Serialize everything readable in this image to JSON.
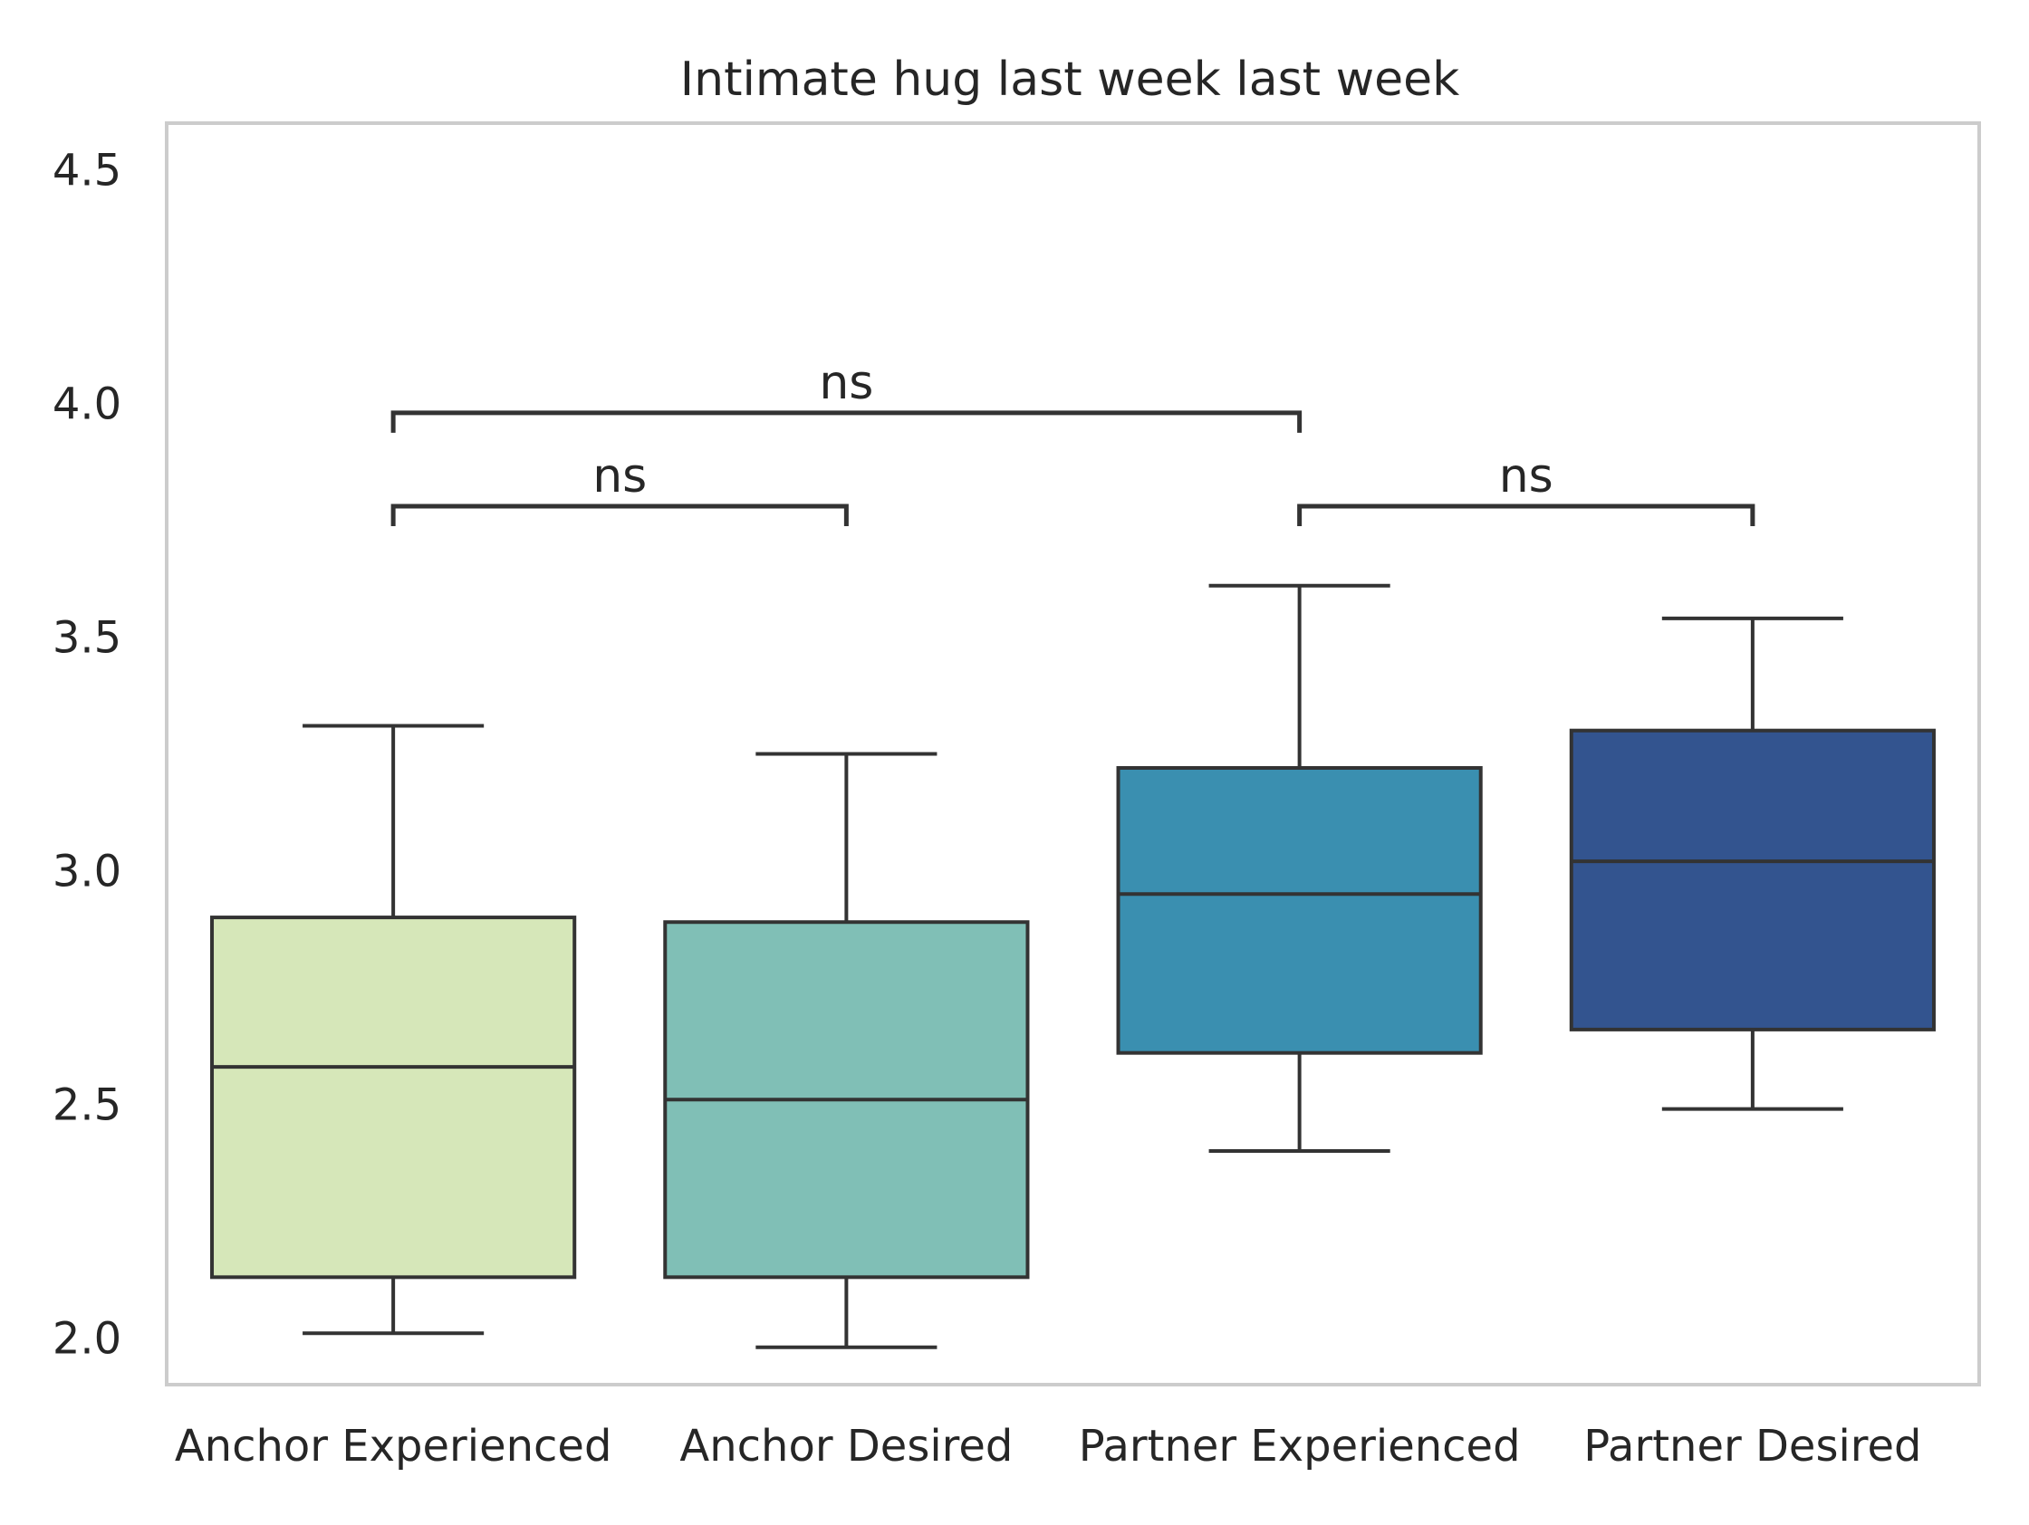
{
  "chart_data": {
    "type": "box",
    "title": "Intimate hug last week last week",
    "xlabel": "",
    "ylabel": "",
    "ylim": [
      1.9,
      4.6
    ],
    "yticks": [
      "2.0",
      "2.5",
      "3.0",
      "3.5",
      "4.0",
      "4.5"
    ],
    "grid": false,
    "categories": [
      "Anchor Experienced",
      "Anchor Desired",
      "Partner Experienced",
      "Partner Desired"
    ],
    "boxes": [
      {
        "category": "Anchor Experienced",
        "whisker_low": 2.01,
        "q1": 2.13,
        "median": 2.58,
        "q3": 2.9,
        "whisker_high": 3.31,
        "color": "#d6e7b9"
      },
      {
        "category": "Anchor Desired",
        "whisker_low": 1.98,
        "q1": 2.13,
        "median": 2.51,
        "q3": 2.89,
        "whisker_high": 3.25,
        "color": "#80bfb6"
      },
      {
        "category": "Partner Experienced",
        "whisker_low": 2.4,
        "q1": 2.61,
        "median": 2.95,
        "q3": 3.22,
        "whisker_high": 3.61,
        "color": "#3a8fb0"
      },
      {
        "category": "Partner Desired",
        "whisker_low": 2.49,
        "q1": 2.66,
        "median": 3.02,
        "q3": 3.3,
        "whisker_high": 3.54,
        "color": "#33548f"
      }
    ],
    "annotations": [
      {
        "from": "Anchor Experienced",
        "to": "Anchor Desired",
        "y": 3.78,
        "label": "ns"
      },
      {
        "from": "Partner Experienced",
        "to": "Partner Desired",
        "y": 3.78,
        "label": "ns"
      },
      {
        "from": "Anchor Experienced",
        "to": "Partner Experienced",
        "y": 3.98,
        "label": "ns"
      }
    ],
    "colors": {
      "axis_frame": "#cccccc",
      "lines": "#333333",
      "text": "#262626"
    }
  }
}
